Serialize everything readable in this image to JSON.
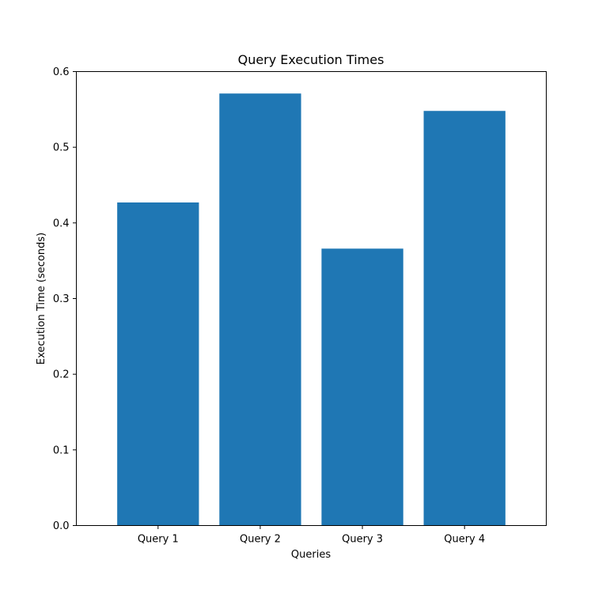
{
  "chart_data": {
    "type": "bar",
    "title": "Query Execution Times",
    "xlabel": "Queries",
    "ylabel": "Execution Time (seconds)",
    "categories": [
      "Query 1",
      "Query 2",
      "Query 3",
      "Query 4"
    ],
    "values": [
      0.427,
      0.571,
      0.366,
      0.548
    ],
    "ylim": [
      0,
      0.6
    ],
    "yticks": [
      "0.0",
      "0.1",
      "0.2",
      "0.3",
      "0.4",
      "0.5",
      "0.6"
    ],
    "grid": false,
    "legend": "none",
    "bar_color": "#1f77b4"
  }
}
